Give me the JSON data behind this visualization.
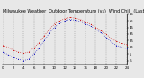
{
  "title": "Milwaukee Weather  Outdoor Temperature (vs)  Wind Chill  (Last 24 Hours)",
  "title_fontsize": 3.5,
  "bg_color": "#e8e8e8",
  "plot_bg_color": "#e8e8e8",
  "grid_color": "#888888",
  "red_color": "#cc0000",
  "blue_color": "#0000bb",
  "black_color": "#000000",
  "x_hours": [
    0,
    1,
    2,
    3,
    4,
    5,
    6,
    7,
    8,
    9,
    10,
    11,
    12,
    13,
    14,
    15,
    16,
    17,
    18,
    19,
    20,
    21,
    22,
    23,
    24
  ],
  "temp": [
    18,
    15,
    11,
    8,
    6,
    8,
    14,
    22,
    32,
    42,
    50,
    55,
    58,
    60,
    59,
    57,
    53,
    50,
    45,
    40,
    35,
    28,
    24,
    21,
    19
  ],
  "windchill": [
    8,
    4,
    0,
    -3,
    -5,
    -3,
    5,
    14,
    25,
    36,
    45,
    51,
    55,
    57,
    56,
    54,
    50,
    47,
    42,
    37,
    30,
    23,
    18,
    15,
    13
  ],
  "ylim": [
    -10,
    65
  ],
  "yticks": [
    -5,
    5,
    15,
    25,
    35,
    45,
    55,
    65
  ],
  "ytick_labels": [
    "-5",
    "5",
    "15",
    "25",
    "35",
    "45",
    "55",
    "65"
  ],
  "xlabel_hours": [
    0,
    2,
    4,
    6,
    8,
    10,
    12,
    14,
    16,
    18,
    20,
    22,
    24
  ],
  "x_labels": [
    "0",
    "2",
    "4",
    "6",
    "8",
    "10",
    "12",
    "14",
    "16",
    "18",
    "20",
    "22",
    "24"
  ],
  "tick_fontsize": 2.8,
  "markersize": 1.5,
  "linewidth": 0.0
}
